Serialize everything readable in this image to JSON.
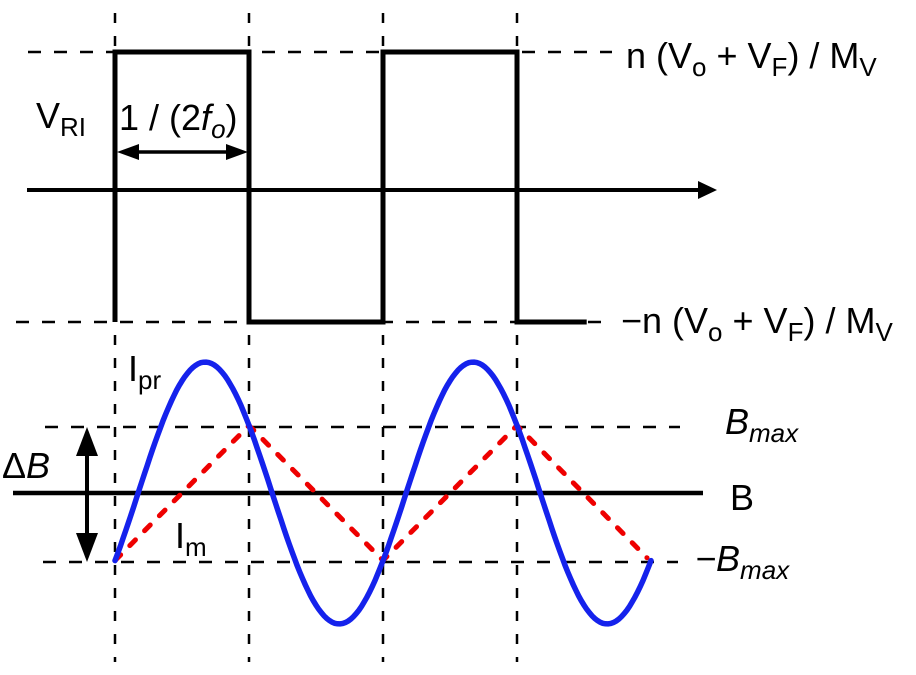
{
  "colors": {
    "ink": "#000000",
    "sine": "#1522ec",
    "triangle": "#ee0000"
  },
  "labels": {
    "vri": {
      "base": "V",
      "sub": "RI"
    },
    "half_period": {
      "p1": "1 / (2",
      "f": "f",
      "fsub": "o",
      "p2": ")"
    },
    "high_level": {
      "p1": "n (V",
      "s1": "o",
      "p2": " + V",
      "s2": "F",
      "p3": ") / M",
      "s3": "V"
    },
    "low_level": {
      "p1": "−n (V",
      "s1": "o",
      "p2": " + V",
      "s2": "F",
      "p3": ") / M",
      "s3": "V"
    },
    "sine": {
      "base": "I",
      "sub": "pr"
    },
    "triangle": {
      "base": "I",
      "sub": "m"
    },
    "delta_b": {
      "d": "Δ",
      "b": "B"
    },
    "bmax": {
      "base": "B",
      "sub": "max"
    },
    "b_axis": "B",
    "neg_bmax": {
      "base": "−B",
      "sub": "max"
    }
  },
  "chart_data": {
    "type": "line",
    "title": "",
    "x_unit": "time in units of half resonant period 1/(2fo)",
    "top_panel": {
      "ylabel": "VRI",
      "high_level_label": "n (Vo + VF) / MV",
      "low_level_label": "−n (Vo + VF) / MV",
      "half_period_annotation": "1 / (2fo)",
      "series": [
        {
          "name": "VRI square wave",
          "shape": "square",
          "vertices_t_v": [
            [
              0,
              -1
            ],
            [
              0,
              1
            ],
            [
              1,
              1
            ],
            [
              1,
              -1
            ],
            [
              2,
              -1
            ],
            [
              2,
              1
            ],
            [
              3,
              1
            ],
            [
              3,
              -1
            ],
            [
              3.52,
              -1
            ]
          ]
        }
      ],
      "switch_times": [
        0,
        1,
        2,
        3
      ],
      "grid": "vertical dashed at switch times; horizontal dashed at ±level"
    },
    "bottom_panel": {
      "ylabel": "B",
      "y_reference_lines": [
        1,
        -1
      ],
      "y_reference_labels": [
        "Bmax",
        "−Bmax"
      ],
      "delta_annotation": "ΔB spans from −Bmax to Bmax",
      "series": [
        {
          "name": "Ipr",
          "shape": "sine",
          "amplitude_in_Bmax": 1.94,
          "period_half_periods": 2,
          "phase_rad": -0.5428,
          "t_start": 0,
          "t_end": 4.01,
          "note": "equals −Bmax at t=0,2,4 and +Bmax at t=1,3 (switching instants)"
        },
        {
          "name": "Im",
          "shape": "triangle",
          "vertices_t_B": [
            [
              0,
              -1
            ],
            [
              1,
              1
            ],
            [
              2,
              -1
            ],
            [
              3,
              1
            ],
            [
              3.97,
              -0.96
            ]
          ]
        }
      ],
      "legend_position": "inline labels",
      "grid": "vertical dashed at switch times; horizontal dashed at ±Bmax"
    }
  }
}
